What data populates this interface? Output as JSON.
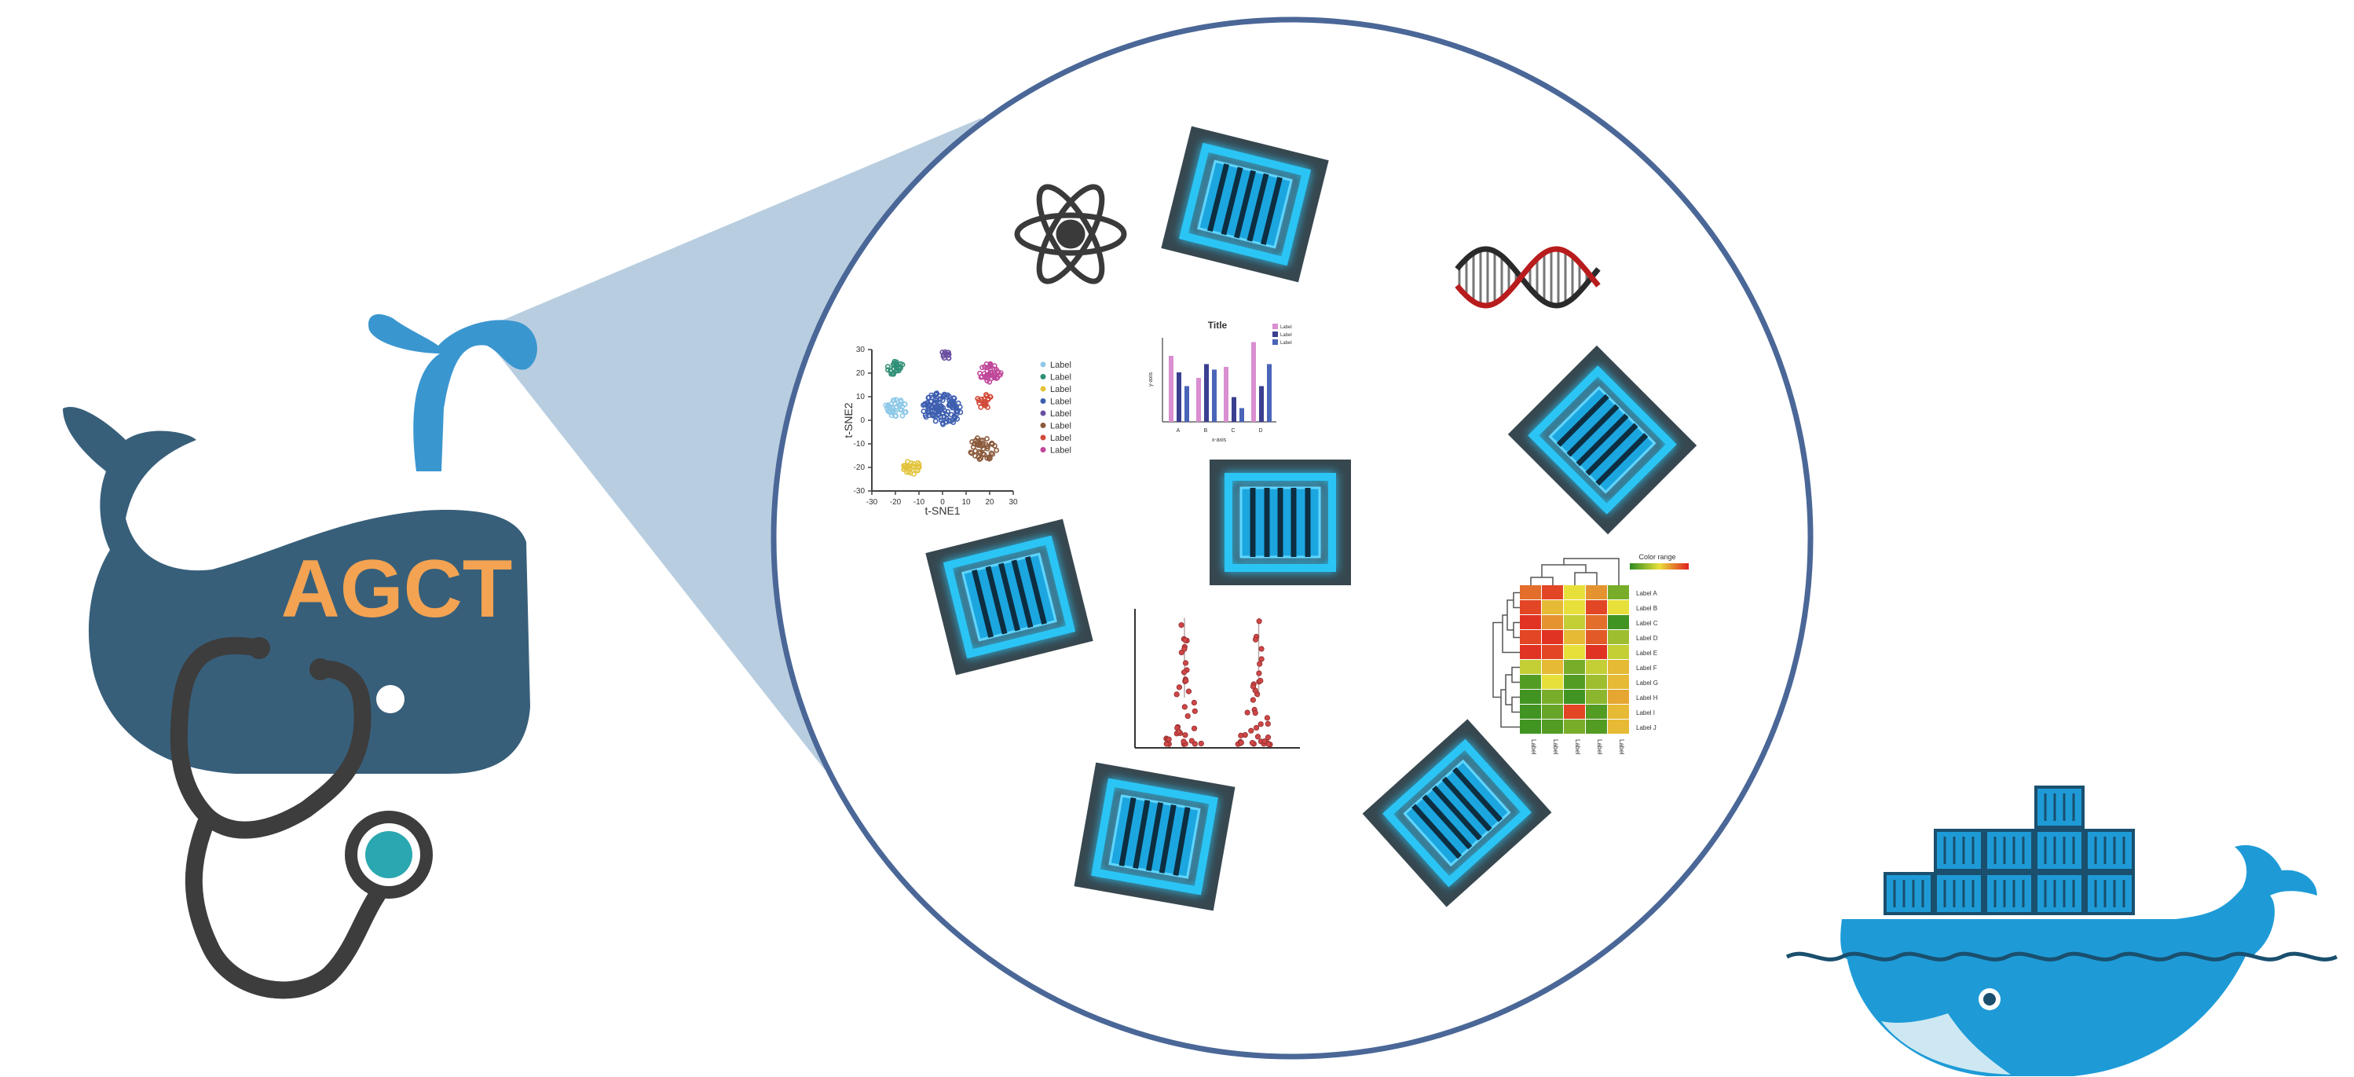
{
  "logo": {
    "text": "AGCT",
    "colors": {
      "whale_body": "#385f7a",
      "spout": "#3a96cf",
      "text": "#f3a352",
      "stethoscope": "#3d3d3d",
      "chestpiece_center": "#2aa7b0"
    }
  },
  "zoom": {
    "circle_stroke": "#4a6797",
    "cone_fill": "#b8cee0"
  },
  "icons": [
    {
      "name": "atom-icon"
    },
    {
      "name": "dna-icon"
    },
    {
      "name": "container-icon"
    },
    {
      "name": "docker-whale-icon"
    }
  ],
  "tsne_plot": {
    "xlabel": "t-SNE1",
    "ylabel": "t-SNE2",
    "x_ticks": [
      "-30",
      "-20",
      "-10",
      "0",
      "10",
      "20",
      "30"
    ],
    "y_ticks": [
      "30",
      "20",
      "10",
      "0",
      "-10",
      "-20",
      "-30"
    ],
    "legend": [
      "Label",
      "Label",
      "Label",
      "Label",
      "Label",
      "Label",
      "Label",
      "Label"
    ],
    "legend_colors": [
      "#8ec9e8",
      "#2f8f76",
      "#e2c33a",
      "#3e5fb0",
      "#6a4fa0",
      "#8b5a3c",
      "#d24a3a",
      "#c0479a"
    ]
  },
  "bar_chart": {
    "title": "Title",
    "xlabel": "x-axis",
    "ylabel": "y-axis",
    "categories": [
      "A",
      "B",
      "C",
      "D"
    ],
    "legend": [
      "Label",
      "Label",
      "Label"
    ],
    "series_colors": [
      "#d98fd0",
      "#3a3f8f",
      "#4a64b8"
    ]
  },
  "heatmap": {
    "legend_title": "Color range",
    "row_labels": [
      "Label A",
      "Label B",
      "Label C",
      "Label D",
      "Label E",
      "Label F",
      "Label G",
      "Label H",
      "Label I",
      "Label J"
    ],
    "col_labels": [
      "Label",
      "Label",
      "Label",
      "Label",
      "Label"
    ]
  },
  "chart_data": [
    {
      "type": "scatter",
      "xlabel": "t-SNE1",
      "ylabel": "t-SNE2",
      "xlim": [
        -30,
        30
      ],
      "ylim": [
        -30,
        30
      ],
      "series": [
        {
          "name": "Label",
          "cx": -20,
          "cy": 5,
          "spread": 4,
          "n": 40
        },
        {
          "name": "Label",
          "cx": -20,
          "cy": 22,
          "spread": 3,
          "n": 25
        },
        {
          "name": "Label",
          "cx": -13,
          "cy": -20,
          "spread": 3,
          "n": 25
        },
        {
          "name": "Label",
          "cx": 0,
          "cy": 5,
          "spread": 7,
          "n": 120
        },
        {
          "name": "Label",
          "cx": 20,
          "cy": 20,
          "spread": 4,
          "n": 40
        },
        {
          "name": "Label",
          "cx": 17,
          "cy": -12,
          "spread": 5,
          "n": 45
        },
        {
          "name": "Label",
          "cx": 18,
          "cy": 8,
          "spread": 3,
          "n": 20
        },
        {
          "name": "Label",
          "cx": 2,
          "cy": 28,
          "spread": 2,
          "n": 12
        }
      ]
    },
    {
      "type": "bar",
      "title": "Title",
      "xlabel": "x-axis",
      "ylabel": "y-axis",
      "categories": [
        "A",
        "B",
        "C",
        "D"
      ],
      "ylim": [
        0,
        30
      ],
      "series": [
        {
          "name": "Label",
          "values": [
            24,
            16,
            20,
            29
          ]
        },
        {
          "name": "Label",
          "values": [
            18,
            21,
            9,
            13
          ]
        },
        {
          "name": "Label",
          "values": [
            13,
            19,
            5,
            21
          ]
        }
      ]
    },
    {
      "type": "scatter",
      "groups": [
        {
          "center": 0.3,
          "max_height": 0.95
        },
        {
          "center": 0.75,
          "max_height": 0.95
        }
      ]
    },
    {
      "type": "heatmap",
      "rows": [
        "Label A",
        "Label B",
        "Label C",
        "Label D",
        "Label E",
        "Label F",
        "Label G",
        "Label H",
        "Label I",
        "Label J"
      ],
      "cols": [
        "Label",
        "Label",
        "Label",
        "Label",
        "Label"
      ],
      "values": [
        [
          0.8,
          0.9,
          0.5,
          0.7,
          0.2
        ],
        [
          0.9,
          0.6,
          0.5,
          0.9,
          0.5
        ],
        [
          0.95,
          0.7,
          0.4,
          0.8,
          0.05
        ],
        [
          0.9,
          0.95,
          0.6,
          0.85,
          0.3
        ],
        [
          0.95,
          0.9,
          0.5,
          0.95,
          0.4
        ],
        [
          0.4,
          0.6,
          0.2,
          0.4,
          0.6
        ],
        [
          0.1,
          0.5,
          0.1,
          0.3,
          0.6
        ],
        [
          0.05,
          0.2,
          0.05,
          0.25,
          0.65
        ],
        [
          0.05,
          0.15,
          0.9,
          0.1,
          0.6
        ],
        [
          0.05,
          0.1,
          0.2,
          0.1,
          0.6
        ]
      ],
      "color_range": [
        "#2e8b1f",
        "#e8e03a",
        "#e02020"
      ]
    }
  ]
}
